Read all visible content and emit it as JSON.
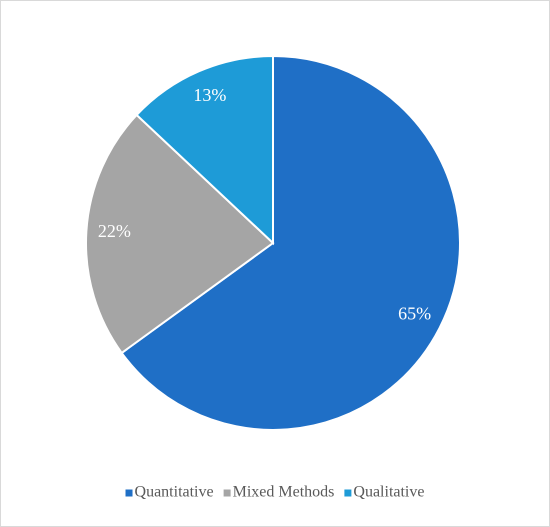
{
  "chart_data": {
    "type": "pie",
    "series": [
      {
        "name": "Quantitative",
        "color": "#1f6fc6",
        "values": [
          65
        ],
        "value_labels": [
          "65%"
        ]
      },
      {
        "name": "Mixed Methods",
        "color": "#a5a5a5",
        "values": [
          22
        ],
        "value_labels": [
          "22%"
        ]
      },
      {
        "name": "Qualitative",
        "color": "#1e9bd7",
        "values": [
          13
        ],
        "value_labels": [
          "13%"
        ]
      }
    ],
    "legend": "bottom"
  }
}
